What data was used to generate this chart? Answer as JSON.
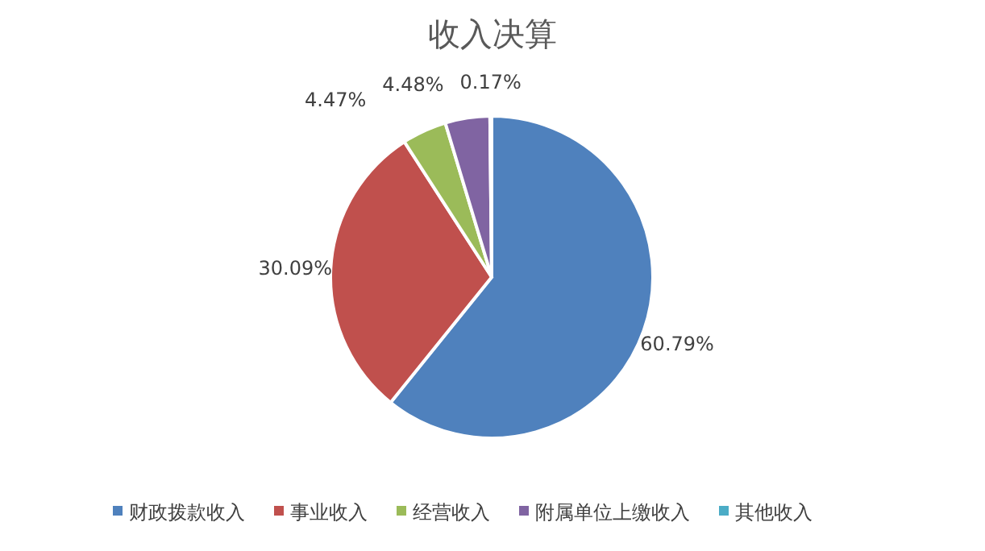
{
  "chart_data": {
    "type": "pie",
    "title": "收入决算",
    "categories": [
      "财政拨款收入",
      "事业收入",
      "经营收入",
      "附属单位上缴收入",
      "其他收入"
    ],
    "values": [
      60.79,
      30.09,
      4.47,
      4.48,
      0.17
    ],
    "value_labels": [
      "60.79%",
      "30.09%",
      "4.47%",
      "4.48%",
      "0.17%"
    ],
    "colors": [
      "#4f81bd",
      "#c0504d",
      "#9bbb59",
      "#8064a2",
      "#4bacc6"
    ],
    "legend": "bottom"
  }
}
